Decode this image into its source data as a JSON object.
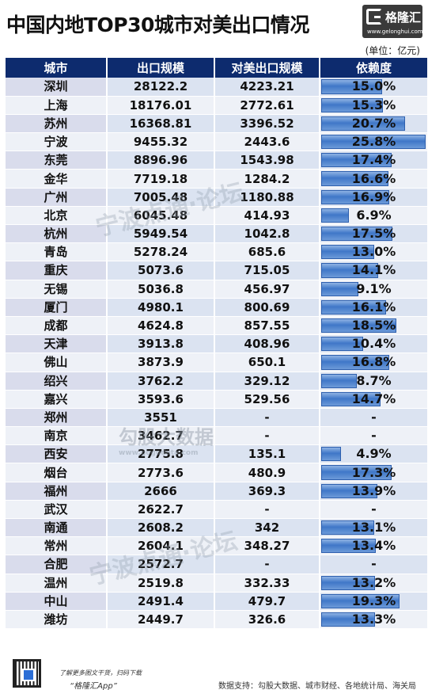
{
  "title": "中国内地TOP30城市对美出口情况",
  "logo": {
    "name": "格隆汇",
    "url": "www.gelonghui.com"
  },
  "unit": "(单位：亿元)",
  "table": {
    "headers": [
      "城市",
      "出口规模",
      "对美出口规模",
      "依赖度"
    ],
    "rows": [
      {
        "city": "深圳",
        "export": "28122.2",
        "us_export": "4223.21",
        "dependency": "15.0%",
        "dep_value": 15.0
      },
      {
        "city": "上海",
        "export": "18176.01",
        "us_export": "2772.61",
        "dependency": "15.3%",
        "dep_value": 15.3
      },
      {
        "city": "苏州",
        "export": "16368.81",
        "us_export": "3396.52",
        "dependency": "20.7%",
        "dep_value": 20.7
      },
      {
        "city": "宁波",
        "export": "9455.32",
        "us_export": "2443.6",
        "dependency": "25.8%",
        "dep_value": 25.8
      },
      {
        "city": "东莞",
        "export": "8896.96",
        "us_export": "1543.98",
        "dependency": "17.4%",
        "dep_value": 17.4
      },
      {
        "city": "金华",
        "export": "7719.18",
        "us_export": "1284.2",
        "dependency": "16.6%",
        "dep_value": 16.6
      },
      {
        "city": "广州",
        "export": "7005.48",
        "us_export": "1180.88",
        "dependency": "16.9%",
        "dep_value": 16.9
      },
      {
        "city": "北京",
        "export": "6045.48",
        "us_export": "414.93",
        "dependency": "6.9%",
        "dep_value": 6.9
      },
      {
        "city": "杭州",
        "export": "5949.54",
        "us_export": "1042.8",
        "dependency": "17.5%",
        "dep_value": 17.5
      },
      {
        "city": "青岛",
        "export": "5278.24",
        "us_export": "685.6",
        "dependency": "13.0%",
        "dep_value": 13.0
      },
      {
        "city": "重庆",
        "export": "5073.6",
        "us_export": "715.05",
        "dependency": "14.1%",
        "dep_value": 14.1
      },
      {
        "city": "无锡",
        "export": "5036.8",
        "us_export": "456.97",
        "dependency": "9.1%",
        "dep_value": 9.1
      },
      {
        "city": "厦门",
        "export": "4980.1",
        "us_export": "800.69",
        "dependency": "16.1%",
        "dep_value": 16.1
      },
      {
        "city": "成都",
        "export": "4624.8",
        "us_export": "857.55",
        "dependency": "18.5%",
        "dep_value": 18.5
      },
      {
        "city": "天津",
        "export": "3913.8",
        "us_export": "408.96",
        "dependency": "10.4%",
        "dep_value": 10.4
      },
      {
        "city": "佛山",
        "export": "3873.9",
        "us_export": "650.1",
        "dependency": "16.8%",
        "dep_value": 16.8
      },
      {
        "city": "绍兴",
        "export": "3762.2",
        "us_export": "329.12",
        "dependency": "8.7%",
        "dep_value": 8.7
      },
      {
        "city": "嘉兴",
        "export": "3593.6",
        "us_export": "529.56",
        "dependency": "14.7%",
        "dep_value": 14.7
      },
      {
        "city": "郑州",
        "export": "3551",
        "us_export": "-",
        "dependency": "-",
        "dep_value": 0
      },
      {
        "city": "南京",
        "export": "3462.7",
        "us_export": "-",
        "dependency": "-",
        "dep_value": 0
      },
      {
        "city": "西安",
        "export": "2775.8",
        "us_export": "135.1",
        "dependency": "4.9%",
        "dep_value": 4.9
      },
      {
        "city": "烟台",
        "export": "2773.6",
        "us_export": "480.9",
        "dependency": "17.3%",
        "dep_value": 17.3
      },
      {
        "city": "福州",
        "export": "2666",
        "us_export": "369.3",
        "dependency": "13.9%",
        "dep_value": 13.9
      },
      {
        "city": "武汉",
        "export": "2622.7",
        "us_export": "-",
        "dependency": "-",
        "dep_value": 0
      },
      {
        "city": "南通",
        "export": "2608.2",
        "us_export": "342",
        "dependency": "13.1%",
        "dep_value": 13.1
      },
      {
        "city": "常州",
        "export": "2604.1",
        "us_export": "348.27",
        "dependency": "13.4%",
        "dep_value": 13.4
      },
      {
        "city": "合肥",
        "export": "2572.7",
        "us_export": "-",
        "dependency": "-",
        "dep_value": 0
      },
      {
        "city": "温州",
        "export": "2519.8",
        "us_export": "332.33",
        "dependency": "13.2%",
        "dep_value": 13.2
      },
      {
        "city": "中山",
        "export": "2491.4",
        "us_export": "479.7",
        "dependency": "19.3%",
        "dep_value": 19.3
      },
      {
        "city": "潍坊",
        "export": "2449.7",
        "us_export": "326.6",
        "dependency": "13.3%",
        "dep_value": 13.3
      }
    ]
  },
  "dep_max": 25.8,
  "watermarks": {
    "forum": "宁波点通·论坛",
    "gogudata": "勾股大数据",
    "gogudata_url": "www.gogudata.com"
  },
  "footer": {
    "note": "了解更多图文干货，扫码下载",
    "app": "“格隆汇App”",
    "source": "数据支持：勾股大数据、城市财经、各地统计局、海关局"
  }
}
